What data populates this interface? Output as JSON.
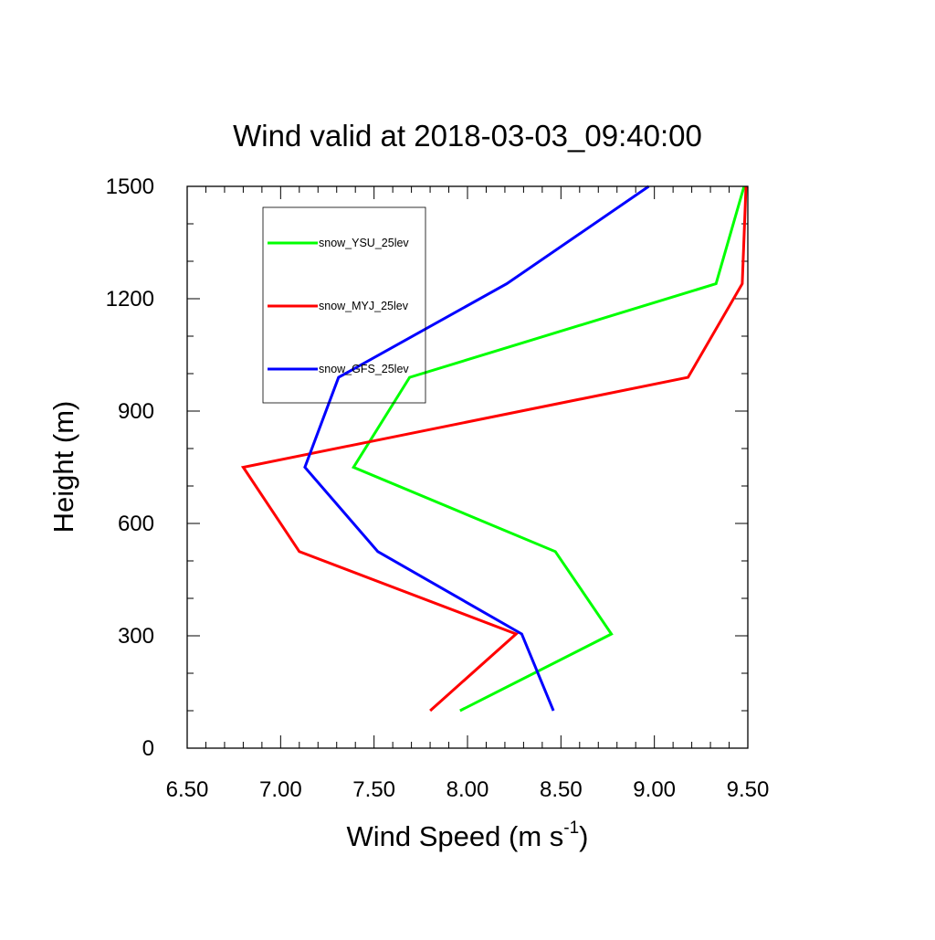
{
  "chart_data": {
    "type": "line",
    "title": "Wind valid at 2018-03-03_09:40:00",
    "xlabel": "Wind Speed (m s",
    "xlabel_exponent": "-1",
    "xlabel_tail": ")",
    "ylabel": "Height (m)",
    "xlim": [
      6.5,
      9.5
    ],
    "ylim": [
      0,
      1500
    ],
    "xticks": [
      6.5,
      7.0,
      7.5,
      8.0,
      8.5,
      9.0,
      9.5
    ],
    "xtick_labels": [
      "6.50",
      "7.00",
      "7.50",
      "8.00",
      "8.50",
      "9.00",
      "9.50"
    ],
    "yticks": [
      0,
      300,
      600,
      900,
      1200,
      1500
    ],
    "ytick_labels": [
      "0",
      "300",
      "600",
      "900",
      "1200",
      "1500"
    ],
    "grid": false,
    "legend_position": "top-left",
    "series": [
      {
        "name": "snow_YSU_25lev",
        "color": "#00ff00",
        "x": [
          7.96,
          8.77,
          8.47,
          7.39,
          7.69,
          9.33,
          9.48
        ],
        "y": [
          100,
          305,
          525,
          750,
          990,
          1240,
          1500
        ]
      },
      {
        "name": "snow_MYJ_25lev",
        "color": "#ff0000",
        "x": [
          7.8,
          8.26,
          7.1,
          6.8,
          9.18,
          9.47,
          9.49
        ],
        "y": [
          100,
          305,
          525,
          750,
          990,
          1240,
          1500
        ]
      },
      {
        "name": "snow_GFS_25lev",
        "color": "#0000ff",
        "x": [
          8.46,
          8.29,
          7.52,
          7.13,
          7.31,
          8.21,
          8.97
        ],
        "y": [
          100,
          305,
          525,
          750,
          990,
          1240,
          1500
        ]
      }
    ]
  }
}
